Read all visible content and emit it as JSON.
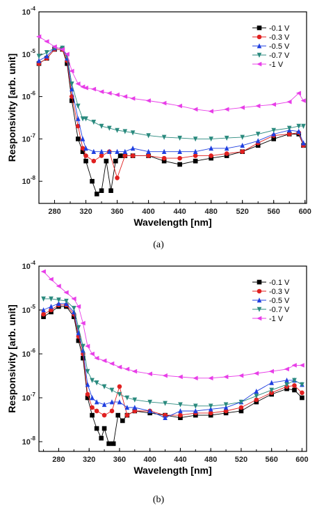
{
  "chart_data": [
    {
      "type": "line",
      "subcaption": "(a)",
      "xlabel": "Wavelength [nm]",
      "ylabel": "Responsivity [arb. unit]",
      "xlim": [
        260,
        602
      ],
      "ylim": [
        3e-09,
        0.0001
      ],
      "y_scale": "log",
      "x_ticks": [
        "280",
        "320",
        "360",
        "400",
        "440",
        "480",
        "520",
        "560",
        "600"
      ],
      "y_ticks": [
        {
          "base": "10",
          "exp": "-8"
        },
        {
          "base": "10",
          "exp": "-7"
        },
        {
          "base": "10",
          "exp": "-6"
        },
        {
          "base": "10",
          "exp": "-5"
        },
        {
          "base": "10",
          "exp": "-4"
        }
      ],
      "legend_position": "top-right",
      "series": [
        {
          "name": "-0.1 V",
          "color": "#000000",
          "marker": "square",
          "x": [
            260,
            270,
            280,
            290,
            296,
            302,
            310,
            316,
            320,
            328,
            334,
            340,
            346,
            352,
            358,
            364,
            370,
            380,
            400,
            420,
            440,
            460,
            480,
            500,
            520,
            540,
            560,
            580,
            592,
            598
          ],
          "y": [
            6e-06,
            8e-06,
            1.3e-05,
            1.3e-05,
            6e-06,
            8e-07,
            1e-07,
            5e-08,
            3e-08,
            1e-08,
            5e-09,
            6e-09,
            3e-08,
            6e-09,
            3e-08,
            4e-08,
            4e-08,
            4e-08,
            4e-08,
            3e-08,
            2.5e-08,
            3e-08,
            3.5e-08,
            4e-08,
            5e-08,
            7e-08,
            1e-07,
            1.3e-07,
            1.3e-07,
            7e-08
          ]
        },
        {
          "name": "-0.3 V",
          "color": "#e02020",
          "marker": "circle",
          "x": [
            260,
            270,
            280,
            290,
            296,
            302,
            310,
            316,
            320,
            330,
            340,
            350,
            360,
            370,
            380,
            400,
            420,
            440,
            460,
            480,
            500,
            520,
            540,
            560,
            580,
            592,
            598
          ],
          "y": [
            6e-06,
            8e-06,
            1.3e-05,
            1.3e-05,
            7e-06,
            1e-06,
            2e-07,
            6e-08,
            4e-08,
            3e-08,
            4e-08,
            5e-08,
            1.2e-08,
            4e-08,
            4e-08,
            4e-08,
            3.5e-08,
            3.5e-08,
            4e-08,
            4e-08,
            4.5e-08,
            5e-08,
            8e-08,
            1.2e-07,
            1.3e-07,
            1.4e-07,
            7e-08
          ]
        },
        {
          "name": "-0.5 V",
          "color": "#1f3fe0",
          "marker": "triangle-up",
          "x": [
            260,
            270,
            280,
            290,
            296,
            302,
            310,
            316,
            320,
            330,
            340,
            350,
            360,
            370,
            380,
            400,
            420,
            440,
            460,
            480,
            500,
            520,
            540,
            560,
            580,
            592,
            598
          ],
          "y": [
            7e-06,
            9e-06,
            1.4e-05,
            1.4e-05,
            8e-06,
            1.5e-06,
            3e-07,
            1e-07,
            6e-08,
            5e-08,
            5e-08,
            5e-08,
            5e-08,
            5e-08,
            6e-08,
            5e-08,
            5e-08,
            5e-08,
            5e-08,
            6e-08,
            6e-08,
            7e-08,
            9e-08,
            1.3e-07,
            1.6e-07,
            1.5e-07,
            8e-08
          ]
        },
        {
          "name": "-0.7 V",
          "color": "#2a8a7e",
          "marker": "triangle-down",
          "x": [
            260,
            270,
            280,
            290,
            296,
            302,
            310,
            316,
            320,
            330,
            340,
            350,
            360,
            370,
            380,
            400,
            420,
            440,
            460,
            480,
            500,
            520,
            540,
            560,
            580,
            592,
            598
          ],
          "y": [
            9e-06,
            1.1e-05,
            1.4e-05,
            1.4e-05,
            9e-06,
            2e-06,
            6e-07,
            3e-07,
            3e-07,
            2.5e-07,
            2e-07,
            1.8e-07,
            1.6e-07,
            1.5e-07,
            1.4e-07,
            1.2e-07,
            1.1e-07,
            1.05e-07,
            1e-07,
            1e-07,
            1.05e-07,
            1.1e-07,
            1.3e-07,
            1.6e-07,
            1.8e-07,
            2e-07,
            2e-07
          ]
        },
        {
          "name": "-1 V",
          "color": "#e83ee8",
          "marker": "triangle-left",
          "x": [
            260,
            270,
            280,
            290,
            296,
            302,
            310,
            316,
            320,
            330,
            340,
            350,
            360,
            370,
            380,
            400,
            420,
            440,
            460,
            480,
            500,
            520,
            540,
            560,
            580,
            592,
            598
          ],
          "y": [
            2.6e-05,
            2e-05,
            1.5e-05,
            1.3e-05,
            1e-05,
            4e-06,
            2e-06,
            1.7e-06,
            1.6e-06,
            1.5e-06,
            1.3e-06,
            1.2e-06,
            1.1e-06,
            1e-06,
            9e-07,
            8e-07,
            7e-07,
            6e-07,
            5e-07,
            4.5e-07,
            5e-07,
            5.5e-07,
            6e-07,
            6.5e-07,
            7.5e-07,
            1.2e-06,
            8e-07
          ]
        }
      ]
    },
    {
      "type": "line",
      "subcaption": "(b)",
      "xlabel": "Wavelength [nm]",
      "ylabel": "Responsivity [arb. unit]",
      "xlim": [
        254,
        606
      ],
      "ylim": [
        6e-09,
        0.0001
      ],
      "y_scale": "log",
      "x_ticks": [
        "280",
        "320",
        "360",
        "400",
        "440",
        "480",
        "520",
        "560",
        "600"
      ],
      "y_ticks": [
        {
          "base": "10",
          "exp": "-8"
        },
        {
          "base": "10",
          "exp": "-7"
        },
        {
          "base": "10",
          "exp": "-6"
        },
        {
          "base": "10",
          "exp": "-5"
        },
        {
          "base": "10",
          "exp": "-4"
        }
      ],
      "legend_position": "top-right",
      "series": [
        {
          "name": "-0.1 V",
          "color": "#000000",
          "marker": "square",
          "x": [
            260,
            270,
            280,
            290,
            300,
            306,
            312,
            318,
            324,
            330,
            336,
            340,
            346,
            352,
            358,
            364,
            370,
            380,
            400,
            420,
            440,
            460,
            480,
            500,
            520,
            540,
            560,
            580,
            590,
            600
          ],
          "y": [
            7e-06,
            9e-06,
            1.2e-05,
            1.2e-05,
            7e-06,
            2e-06,
            8e-07,
            1e-07,
            4e-08,
            2e-08,
            1.2e-08,
            2e-08,
            9e-09,
            9e-09,
            4e-08,
            3e-08,
            4e-08,
            5e-08,
            4.5e-08,
            4e-08,
            3.5e-08,
            4e-08,
            4e-08,
            4.5e-08,
            5e-08,
            8e-08,
            1.2e-07,
            1.6e-07,
            1.5e-07,
            1e-07
          ]
        },
        {
          "name": "-0.3 V",
          "color": "#e02020",
          "marker": "circle",
          "x": [
            260,
            270,
            280,
            290,
            300,
            306,
            312,
            318,
            324,
            330,
            340,
            350,
            360,
            370,
            380,
            400,
            420,
            440,
            460,
            480,
            500,
            520,
            540,
            560,
            580,
            590,
            600
          ],
          "y": [
            8e-06,
            1e-05,
            1.3e-05,
            1.3e-05,
            8e-06,
            2.5e-06,
            1e-06,
            1.2e-07,
            6e-08,
            5e-08,
            4e-08,
            5e-08,
            1.8e-07,
            4e-08,
            5e-08,
            5e-08,
            4e-08,
            4e-08,
            4.5e-08,
            4.5e-08,
            5e-08,
            6e-08,
            9e-08,
            1.3e-07,
            1.8e-07,
            1.9e-07,
            1.3e-07
          ]
        },
        {
          "name": "-0.5 V",
          "color": "#1f3fe0",
          "marker": "triangle-up",
          "x": [
            260,
            270,
            280,
            290,
            300,
            306,
            312,
            318,
            324,
            330,
            340,
            350,
            360,
            370,
            380,
            400,
            420,
            440,
            460,
            480,
            500,
            520,
            540,
            560,
            580,
            590,
            600
          ],
          "y": [
            1e-05,
            1.2e-05,
            1.4e-05,
            1.4e-05,
            9e-06,
            3e-06,
            1.2e-06,
            2e-07,
            1e-07,
            8e-08,
            7e-08,
            8e-08,
            8e-08,
            6e-08,
            6e-08,
            5e-08,
            3.5e-08,
            5e-08,
            5e-08,
            5.5e-08,
            6e-08,
            8e-08,
            1.4e-07,
            2.2e-07,
            2.5e-07,
            2.5e-07,
            2e-07
          ]
        },
        {
          "name": "-0.7 V",
          "color": "#2a8a7e",
          "marker": "triangle-down",
          "x": [
            260,
            270,
            280,
            290,
            300,
            306,
            312,
            318,
            324,
            330,
            340,
            350,
            360,
            370,
            380,
            400,
            420,
            440,
            460,
            480,
            500,
            520,
            540,
            560,
            580,
            590,
            600
          ],
          "y": [
            1.8e-05,
            1.8e-05,
            1.7e-05,
            1.6e-05,
            1.1e-05,
            4e-06,
            1.5e-06,
            4e-07,
            2.5e-07,
            2.2e-07,
            1.8e-07,
            1.5e-07,
            1.2e-07,
            1e-07,
            9e-08,
            8e-08,
            7.5e-08,
            7e-08,
            6.5e-08,
            6.5e-08,
            7e-08,
            8e-08,
            1.1e-07,
            1.5e-07,
            2e-07,
            2.5e-07,
            2e-07
          ]
        },
        {
          "name": "-1 V",
          "color": "#e83ee8",
          "marker": "triangle-left",
          "x": [
            260,
            270,
            280,
            290,
            300,
            306,
            312,
            318,
            324,
            330,
            340,
            350,
            360,
            370,
            380,
            400,
            420,
            440,
            460,
            480,
            500,
            520,
            540,
            560,
            580,
            590,
            600
          ],
          "y": [
            7.5e-05,
            5e-05,
            3.5e-05,
            2.5e-05,
            1.8e-05,
            1.2e-05,
            5e-06,
            1.5e-06,
            1e-06,
            8e-07,
            7e-07,
            6e-07,
            5e-07,
            4.5e-07,
            4e-07,
            3.5e-07,
            3.2e-07,
            3e-07,
            2.8e-07,
            2.8e-07,
            3e-07,
            3.2e-07,
            3.6e-07,
            4e-07,
            4.5e-07,
            5.5e-07,
            5.5e-07
          ]
        }
      ]
    }
  ]
}
